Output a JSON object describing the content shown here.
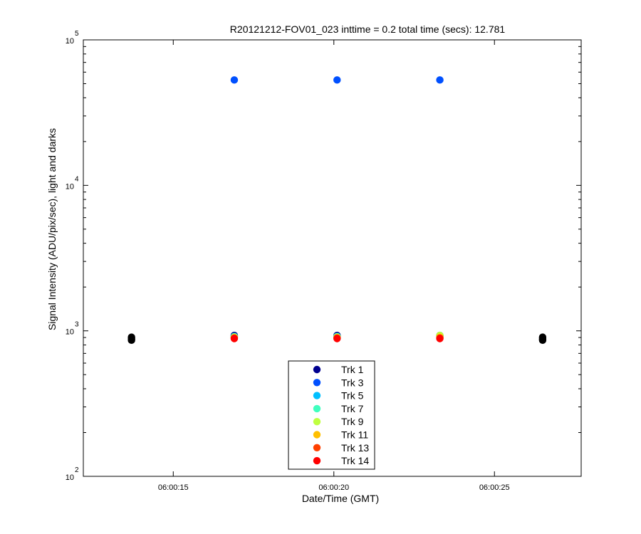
{
  "chart_data": {
    "type": "scatter",
    "title": "R20121212-FOV01_023 inttime = 0.2 total time (secs): 12.781",
    "xlabel": "Date/Time (GMT)",
    "ylabel": "Signal Intensity (ADU/pix/sec), light and darks",
    "x_unit": "time of day (GMT)",
    "xlim": [
      "06:00:12.2",
      "06:00:27.7"
    ],
    "ylim": [
      100,
      100000
    ],
    "yscale": "log",
    "x_ticks": [
      "06:00:15",
      "06:00:20",
      "06:00:25"
    ],
    "y_ticks": [
      {
        "value": 100,
        "base": "10",
        "exp": "2"
      },
      {
        "value": 1000,
        "base": "10",
        "exp": "3"
      },
      {
        "value": 10000,
        "base": "10",
        "exp": "4"
      },
      {
        "value": 100000,
        "base": "10",
        "exp": "5"
      }
    ],
    "grid": false,
    "legend_position": "bottom-center",
    "series": [
      {
        "name": "Trk 1",
        "color": "#00008f",
        "points": [
          [
            "06:00:16.9",
            930
          ],
          [
            "06:00:20.1",
            930
          ],
          [
            "06:00:23.3",
            930
          ]
        ]
      },
      {
        "name": "Trk 3",
        "color": "#0050ff",
        "points": [
          [
            "06:00:16.9",
            53000
          ],
          [
            "06:00:20.1",
            53000
          ],
          [
            "06:00:23.3",
            53000
          ]
        ]
      },
      {
        "name": "Trk 5",
        "color": "#00bfff",
        "points": [
          [
            "06:00:16.9",
            915
          ],
          [
            "06:00:20.1",
            915
          ],
          [
            "06:00:23.3",
            915
          ]
        ]
      },
      {
        "name": "Trk 7",
        "color": "#40ffbf",
        "points": [
          [
            "06:00:16.9",
            912
          ],
          [
            "06:00:20.1",
            912
          ],
          [
            "06:00:23.3",
            925
          ]
        ]
      },
      {
        "name": "Trk 9",
        "color": "#bfff40",
        "points": [
          [
            "06:00:16.9",
            905
          ],
          [
            "06:00:20.1",
            905
          ],
          [
            "06:00:23.3",
            930
          ]
        ]
      },
      {
        "name": "Trk 11",
        "color": "#ffbf00",
        "points": [
          [
            "06:00:16.9",
            898
          ],
          [
            "06:00:20.1",
            898
          ],
          [
            "06:00:23.3",
            905
          ]
        ]
      },
      {
        "name": "Trk 13",
        "color": "#ff4000",
        "points": [
          [
            "06:00:16.9",
            892
          ],
          [
            "06:00:20.1",
            892
          ],
          [
            "06:00:23.3",
            892
          ]
        ]
      },
      {
        "name": "Trk 14",
        "color": "#ff0000",
        "points": [
          [
            "06:00:16.9",
            885
          ],
          [
            "06:00:20.1",
            885
          ],
          [
            "06:00:23.3",
            885
          ]
        ]
      }
    ],
    "dark_points": {
      "color": "#000000",
      "points": [
        [
          "06:00:13.7",
          905
        ],
        [
          "06:00:13.7",
          890
        ],
        [
          "06:00:13.7",
          875
        ],
        [
          "06:00:13.7",
          862
        ],
        [
          "06:00:26.5",
          905
        ],
        [
          "06:00:26.5",
          890
        ],
        [
          "06:00:26.5",
          875
        ],
        [
          "06:00:26.5",
          862
        ]
      ]
    }
  }
}
